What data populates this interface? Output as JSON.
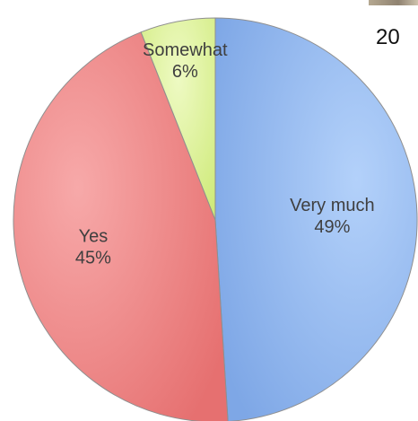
{
  "chart_data": {
    "type": "pie",
    "title": "",
    "slices": [
      {
        "name": "Very much",
        "value": 49,
        "label": "49%",
        "color": "#98BEF2"
      },
      {
        "name": "Yes",
        "value": 45,
        "label": "45%",
        "color": "#F28C8C"
      },
      {
        "name": "Somewhat",
        "value": 6,
        "label": "6%",
        "color": "#DDF39A"
      }
    ]
  },
  "corner_text": "20"
}
